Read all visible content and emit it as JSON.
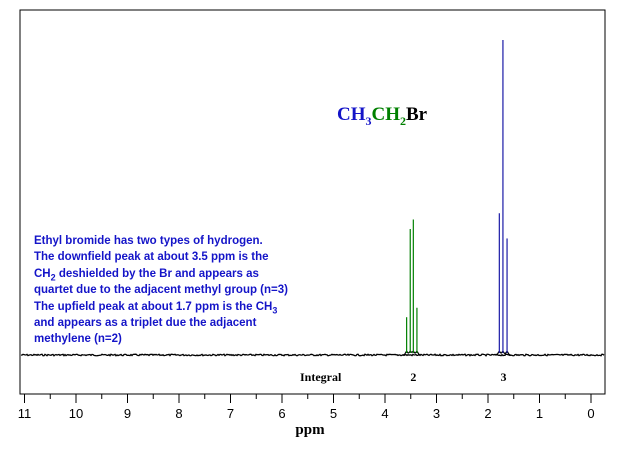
{
  "colors": {
    "background": "#ffffff",
    "axis": "#000000",
    "peak_ch2": "#008000",
    "peak_ch3": "#1a1aa6",
    "text_blue": "#1414c8"
  },
  "formula": {
    "ch3_label": "CH",
    "ch3_sub": "3",
    "ch2_label": "CH",
    "ch2_sub": "2",
    "br_label": "Br",
    "ch3_color": "#1414c8",
    "ch2_color": "#008000",
    "br_color": "#000000"
  },
  "description": {
    "line1": "Ethyl bromide has two types of hydrogen.",
    "line2": "The downfield peak at about 3.5 ppm is the",
    "line3_a": "CH",
    "line3_sub": "2",
    "line3_b": " deshielded by the Br and appears as",
    "line4": "quartet due to the adjacent methyl group (n=3)",
    "line5_a": "The upfield peak at about 1.7 ppm is the CH",
    "line5_sub": "3",
    "line6": "and appears as a triplet due the adjacent",
    "line7": "methylene (n=2)"
  },
  "chart_data": {
    "type": "line",
    "xlabel": "ppm",
    "xlim": [
      11.4,
      -0.3
    ],
    "x_reversed": true,
    "x_ticks": [
      "11",
      "10",
      "9",
      "8",
      "7",
      "6",
      "5",
      "4",
      "3",
      "2",
      "1",
      "0"
    ],
    "integral_label": "Integral",
    "integrals": [
      {
        "ppm": 3.45,
        "value": "2"
      },
      {
        "ppm": 1.7,
        "value": "3"
      }
    ],
    "series": [
      {
        "group": "CH2 quartet",
        "color": "#008000",
        "peaks": [
          {
            "ppm": 3.58,
            "height": 0.12
          },
          {
            "ppm": 3.51,
            "height": 0.4
          },
          {
            "ppm": 3.45,
            "height": 0.43
          },
          {
            "ppm": 3.38,
            "height": 0.15
          }
        ]
      },
      {
        "group": "CH3 triplet",
        "color": "#1a1aa6",
        "peaks": [
          {
            "ppm": 1.78,
            "height": 0.45
          },
          {
            "ppm": 1.71,
            "height": 1.0
          },
          {
            "ppm": 1.63,
            "height": 0.37
          }
        ]
      }
    ]
  }
}
